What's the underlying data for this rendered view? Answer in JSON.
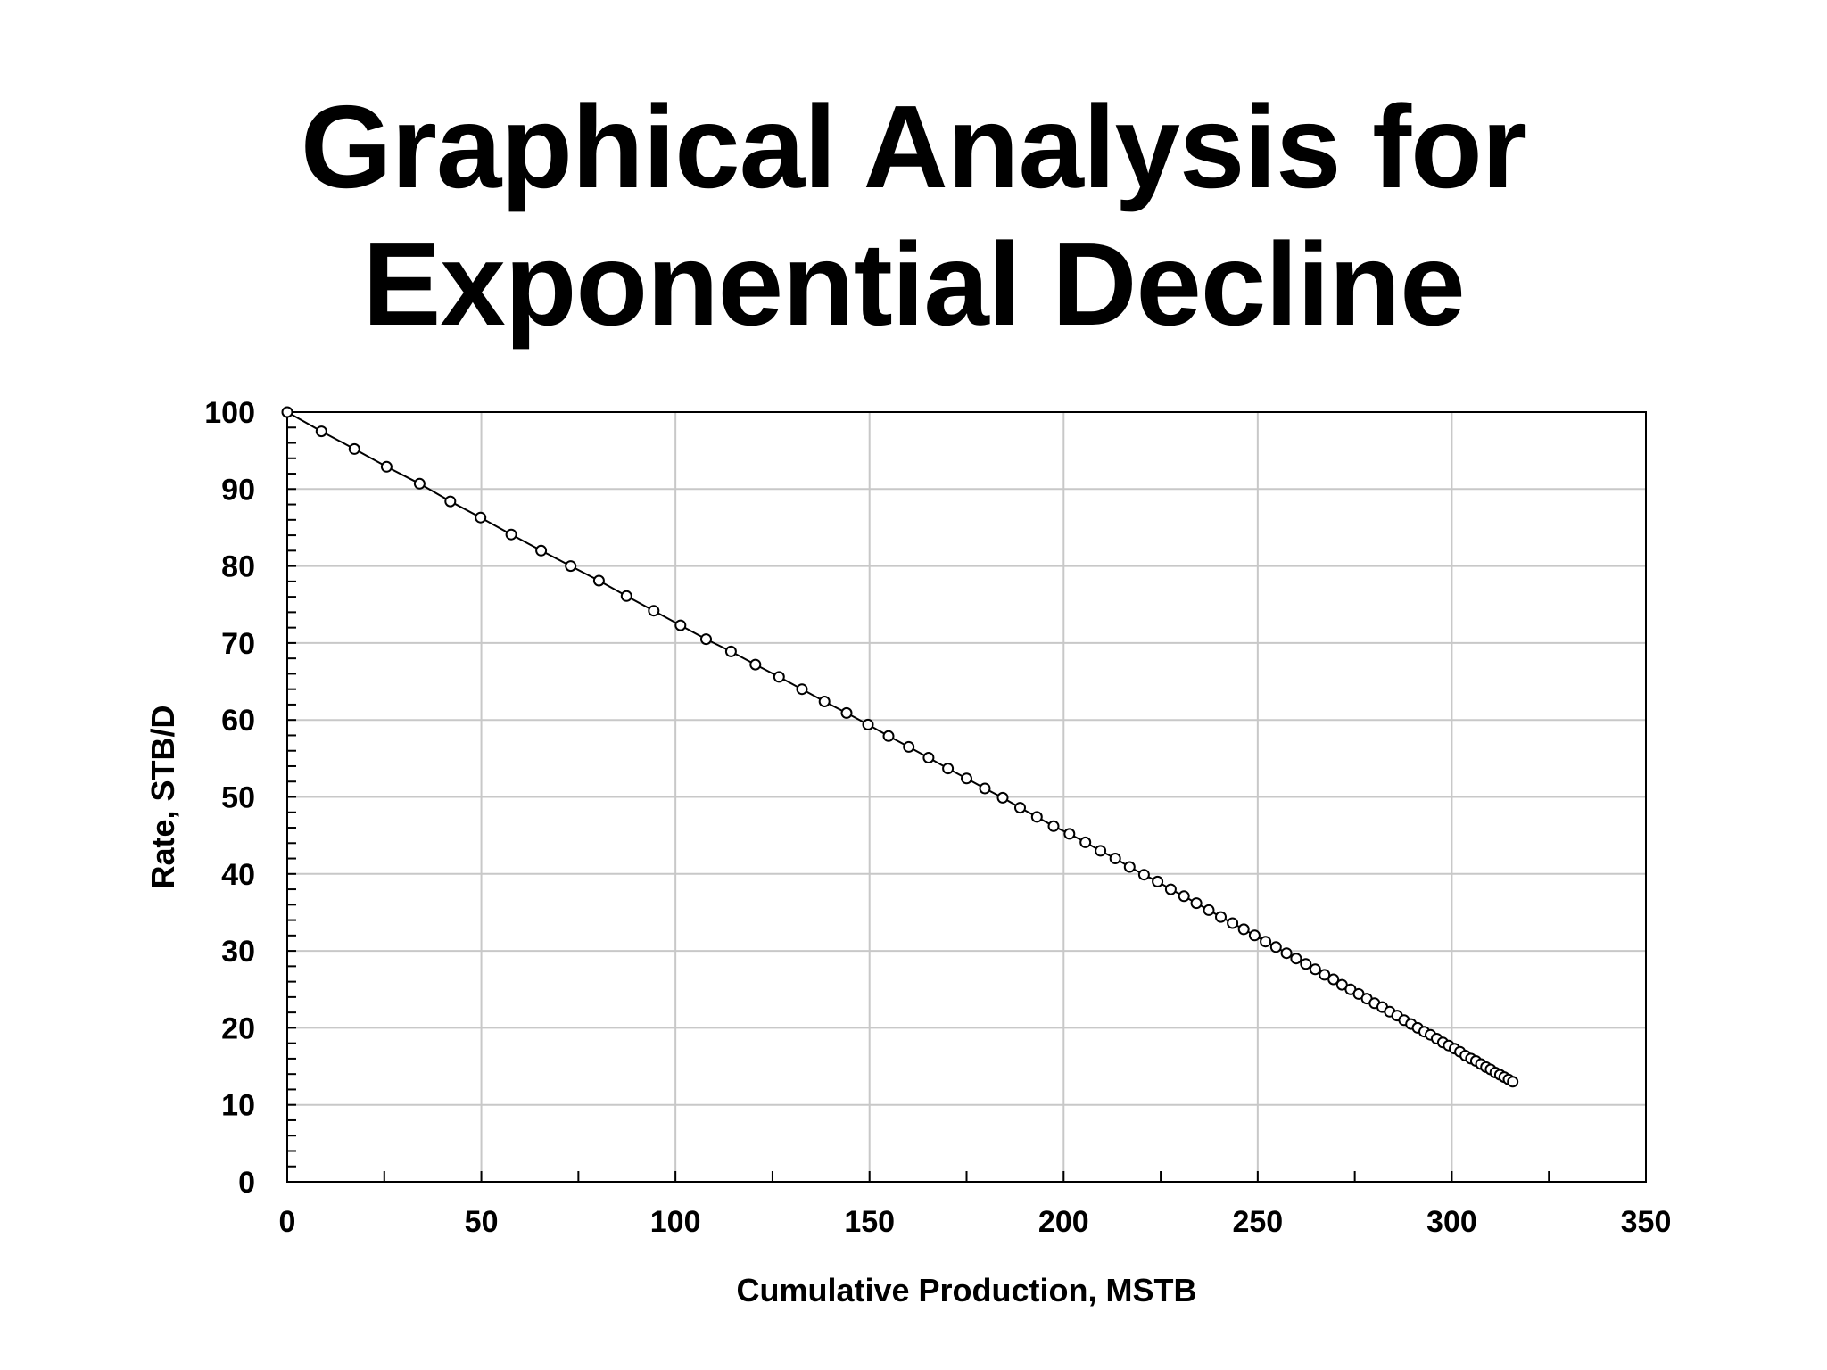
{
  "slide": {
    "title_line1": "Graphical Analysis for",
    "title_line2": "Exponential Decline"
  },
  "colors": {
    "gridline": "#c8c8c8",
    "axis": "#000000",
    "series": "#000000",
    "background": "#ffffff"
  },
  "chart_data": {
    "type": "scatter",
    "title": "",
    "xlabel": "Cumulative Production, MSTB",
    "ylabel": "Rate, STB/D",
    "xlim": [
      0,
      350
    ],
    "ylim": [
      0,
      100
    ],
    "x_ticks": [
      "0",
      "50",
      "100",
      "150",
      "200",
      "250",
      "300",
      "350"
    ],
    "y_ticks": [
      "0",
      "10",
      "20",
      "30",
      "40",
      "50",
      "60",
      "70",
      "80",
      "90",
      "100"
    ],
    "grid": true,
    "legend": "none",
    "marker": "open-circle",
    "connected_line": true,
    "series": [
      {
        "points": [
          [
            0.0,
            100.0
          ],
          [
            8.8,
            97.5
          ],
          [
            17.3,
            95.2
          ],
          [
            25.6,
            92.9
          ],
          [
            34.1,
            90.7
          ],
          [
            42.0,
            88.4
          ],
          [
            49.8,
            86.3
          ],
          [
            57.7,
            84.1
          ],
          [
            65.4,
            82.0
          ],
          [
            73.0,
            80.0
          ],
          [
            80.3,
            78.1
          ],
          [
            87.4,
            76.1
          ],
          [
            94.4,
            74.2
          ],
          [
            101.3,
            72.3
          ],
          [
            107.9,
            70.5
          ],
          [
            114.3,
            68.9
          ],
          [
            120.6,
            67.2
          ],
          [
            126.7,
            65.6
          ],
          [
            132.6,
            64.0
          ],
          [
            138.4,
            62.4
          ],
          [
            144.1,
            60.9
          ],
          [
            149.6,
            59.4
          ],
          [
            154.9,
            57.9
          ],
          [
            160.1,
            56.5
          ],
          [
            165.2,
            55.1
          ],
          [
            170.2,
            53.7
          ],
          [
            175.0,
            52.4
          ],
          [
            179.7,
            51.1
          ],
          [
            184.3,
            49.9
          ],
          [
            188.8,
            48.6
          ],
          [
            193.1,
            47.4
          ],
          [
            197.4,
            46.2
          ],
          [
            201.5,
            45.2
          ],
          [
            205.6,
            44.1
          ],
          [
            209.5,
            43.0
          ],
          [
            213.3,
            42.0
          ],
          [
            217.0,
            40.9
          ],
          [
            220.7,
            39.9
          ],
          [
            224.2,
            39.0
          ],
          [
            227.6,
            38.0
          ],
          [
            231.0,
            37.1
          ],
          [
            234.2,
            36.2
          ],
          [
            237.4,
            35.3
          ],
          [
            240.5,
            34.4
          ],
          [
            243.5,
            33.6
          ],
          [
            246.4,
            32.8
          ],
          [
            249.2,
            32.0
          ],
          [
            252.0,
            31.2
          ],
          [
            254.7,
            30.5
          ],
          [
            257.4,
            29.7
          ],
          [
            259.9,
            29.0
          ],
          [
            262.4,
            28.3
          ],
          [
            264.8,
            27.6
          ],
          [
            267.2,
            26.9
          ],
          [
            269.5,
            26.3
          ],
          [
            271.7,
            25.6
          ],
          [
            273.9,
            25.0
          ],
          [
            276.0,
            24.4
          ],
          [
            278.1,
            23.8
          ],
          [
            280.1,
            23.2
          ],
          [
            282.1,
            22.7
          ],
          [
            284.0,
            22.1
          ],
          [
            285.9,
            21.6
          ],
          [
            287.7,
            21.0
          ],
          [
            289.5,
            20.5
          ],
          [
            291.2,
            20.0
          ],
          [
            292.9,
            19.5
          ],
          [
            294.5,
            19.1
          ],
          [
            296.1,
            18.6
          ],
          [
            297.7,
            18.1
          ],
          [
            299.2,
            17.7
          ],
          [
            300.7,
            17.3
          ],
          [
            302.1,
            16.9
          ],
          [
            303.5,
            16.4
          ],
          [
            304.9,
            16.0
          ],
          [
            306.2,
            15.7
          ],
          [
            307.5,
            15.3
          ],
          [
            308.8,
            14.9
          ],
          [
            310.0,
            14.6
          ],
          [
            311.2,
            14.2
          ],
          [
            312.4,
            13.9
          ],
          [
            313.5,
            13.6
          ],
          [
            314.6,
            13.3
          ],
          [
            315.7,
            13.0
          ]
        ]
      }
    ]
  }
}
